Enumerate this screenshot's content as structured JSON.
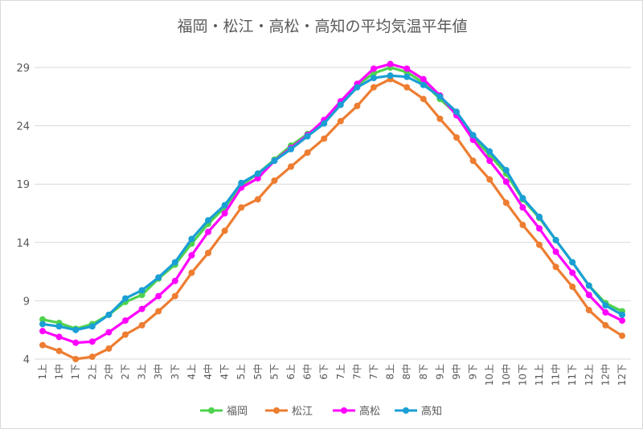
{
  "chart_data": {
    "type": "line",
    "title": "福岡・松江・高松・高知の平均気温平年値",
    "categories": [
      "1上",
      "1中",
      "1下",
      "2上",
      "2中",
      "2下",
      "3上",
      "3中",
      "3下",
      "4上",
      "4中",
      "4下",
      "5上",
      "5中",
      "5下",
      "6上",
      "6中",
      "6下",
      "7上",
      "7中",
      "7下",
      "8上",
      "8中",
      "8下",
      "9上",
      "9中",
      "9下",
      "10上",
      "10中",
      "10下",
      "11上",
      "11中",
      "11下",
      "12上",
      "12中",
      "12下"
    ],
    "ylim": [
      4,
      31
    ],
    "yticks": [
      4,
      9,
      14,
      19,
      24,
      29
    ],
    "grid": true,
    "legend": "bottom",
    "series": [
      {
        "name": "福岡",
        "color": "#4ed34e",
        "values": [
          7.4,
          7.1,
          6.6,
          7.0,
          7.8,
          8.9,
          9.5,
          10.9,
          12.1,
          13.9,
          15.6,
          17.0,
          18.9,
          19.9,
          21.1,
          22.3,
          23.3,
          24.3,
          26.0,
          27.5,
          28.5,
          29.0,
          28.6,
          27.7,
          26.3,
          25.0,
          23.0,
          21.5,
          19.9,
          17.7,
          16.1,
          14.2,
          12.3,
          10.3,
          8.8,
          8.1
        ]
      },
      {
        "name": "松江",
        "color": "#ed7d31",
        "values": [
          5.2,
          4.7,
          4.0,
          4.2,
          4.9,
          6.1,
          6.9,
          8.1,
          9.4,
          11.4,
          13.1,
          15.0,
          17.0,
          17.7,
          19.3,
          20.5,
          21.7,
          22.9,
          24.4,
          25.7,
          27.3,
          28.0,
          27.3,
          26.3,
          24.6,
          23.0,
          21.0,
          19.4,
          17.4,
          15.5,
          13.8,
          11.9,
          10.2,
          8.2,
          6.9,
          6.0
        ]
      },
      {
        "name": "高松",
        "color": "#ff00ff",
        "values": [
          6.4,
          5.9,
          5.4,
          5.5,
          6.3,
          7.3,
          8.3,
          9.4,
          10.7,
          12.9,
          14.9,
          16.5,
          18.7,
          19.5,
          21.0,
          22.1,
          23.2,
          24.5,
          26.1,
          27.6,
          28.9,
          29.3,
          28.9,
          28.0,
          26.6,
          24.9,
          22.8,
          21.0,
          19.2,
          17.0,
          15.2,
          13.2,
          11.4,
          9.5,
          8.0,
          7.3
        ]
      },
      {
        "name": "高知",
        "color": "#1a9fd4",
        "values": [
          7.0,
          6.8,
          6.5,
          6.8,
          7.8,
          9.2,
          9.9,
          11.0,
          12.3,
          14.3,
          15.9,
          17.2,
          19.1,
          19.9,
          21.0,
          22.0,
          23.1,
          24.2,
          25.8,
          27.3,
          28.1,
          28.3,
          28.2,
          27.5,
          26.5,
          25.2,
          23.2,
          21.8,
          20.2,
          17.8,
          16.2,
          14.2,
          12.3,
          10.3,
          8.6,
          7.8
        ]
      }
    ]
  }
}
